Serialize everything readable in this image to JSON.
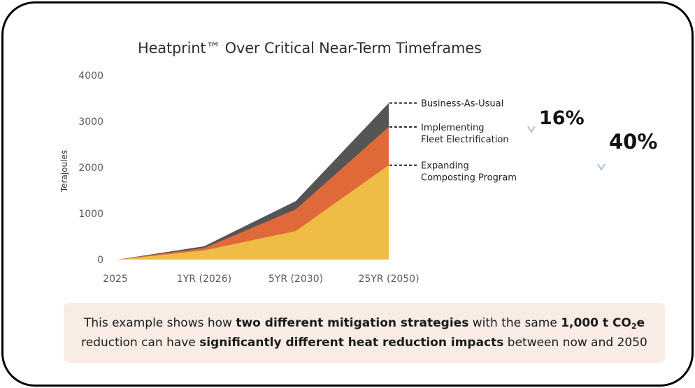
{
  "chart_data": {
    "type": "area",
    "title": "Heatprint™ Over Critical Near-Term Timeframes",
    "ylabel": "Terajoules",
    "xlabel": "",
    "ylim": [
      0,
      4000
    ],
    "y_ticks": [
      "0",
      "1000",
      "2000",
      "3000",
      "4000"
    ],
    "categories": [
      "2025",
      "1YR (2026)",
      "5YR (2030)",
      "25YR (2050)"
    ],
    "series": [
      {
        "name": "Business-As-Usual",
        "color": "#555555",
        "values": [
          0,
          290,
          1270,
          3400
        ]
      },
      {
        "name": "Implementing Fleet Electrification",
        "color": "#e0693a",
        "values": [
          0,
          250,
          1090,
          2880
        ]
      },
      {
        "name": "Expanding Composting Program",
        "color": "#efbd45",
        "values": [
          0,
          200,
          620,
          2050
        ]
      }
    ],
    "series_label_lines": [
      [
        "Business-As-Usual"
      ],
      [
        "Implementing",
        "Fleet Electrification"
      ],
      [
        "Expanding",
        "Composting Program"
      ]
    ],
    "annotations": [
      {
        "text": "16%",
        "arrow_from": "#d96a3b",
        "arrow_to": "#a9bfe0"
      },
      {
        "text": "40%",
        "arrow_from": "#d96a3b",
        "arrow_to": "#a9bfe0"
      }
    ]
  },
  "caption": {
    "part1": "This example shows how ",
    "bold1": "two different mitigation strategies",
    "part2": " with the same ",
    "bold2_pre": "1,000 t CO",
    "bold2_sub": "2",
    "bold2_post": "e",
    "part3": "reduction can have ",
    "bold3": "significantly different heat reduction impacts",
    "part4": " between now and 2050"
  }
}
